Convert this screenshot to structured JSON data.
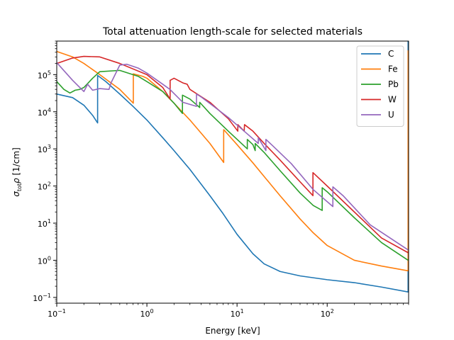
{
  "chart_data": {
    "type": "line",
    "title": "Total attenuation length-scale for selected materials",
    "xlabel": "Energy [keV]",
    "ylabel": "σ_tot ρ [1/cm]",
    "xscale": "log",
    "yscale": "log",
    "xlim": [
      0.1,
      800
    ],
    "ylim": [
      0.07,
      800000
    ],
    "x_ticks": [
      {
        "value": 0.1,
        "base": "10",
        "exp": "−1"
      },
      {
        "value": 1,
        "base": "10",
        "exp": "0"
      },
      {
        "value": 10,
        "base": "10",
        "exp": "1"
      },
      {
        "value": 100,
        "base": "10",
        "exp": "2"
      }
    ],
    "y_ticks": [
      {
        "value": 0.1,
        "base": "10",
        "exp": "−1"
      },
      {
        "value": 1,
        "base": "10",
        "exp": "0"
      },
      {
        "value": 10,
        "base": "10",
        "exp": "1"
      },
      {
        "value": 100,
        "base": "10",
        "exp": "2"
      },
      {
        "value": 1000,
        "base": "10",
        "exp": "3"
      },
      {
        "value": 10000,
        "base": "10",
        "exp": "4"
      },
      {
        "value": 100000,
        "base": "10",
        "exp": "5"
      }
    ],
    "grid": false,
    "legend_position": "top-right",
    "series": [
      {
        "name": "C",
        "color": "#1f77b4",
        "points": [
          [
            0.1,
            30000
          ],
          [
            0.15,
            24000
          ],
          [
            0.2,
            15000
          ],
          [
            0.25,
            8000
          ],
          [
            0.284,
            5000
          ],
          [
            0.284,
            95000
          ],
          [
            0.35,
            65000
          ],
          [
            0.5,
            30000
          ],
          [
            0.7,
            14000
          ],
          [
            1,
            6000
          ],
          [
            1.5,
            2000
          ],
          [
            2,
            900
          ],
          [
            3,
            280
          ],
          [
            5,
            55
          ],
          [
            7,
            18
          ],
          [
            10,
            5
          ],
          [
            15,
            1.5
          ],
          [
            20,
            0.8
          ],
          [
            30,
            0.5
          ],
          [
            50,
            0.38
          ],
          [
            100,
            0.3
          ],
          [
            200,
            0.25
          ],
          [
            400,
            0.19
          ],
          [
            790,
            0.14
          ],
          [
            790,
            900000
          ]
        ]
      },
      {
        "name": "Fe",
        "color": "#ff7f0e",
        "points": [
          [
            0.1,
            420000
          ],
          [
            0.15,
            300000
          ],
          [
            0.2,
            200000
          ],
          [
            0.3,
            100000
          ],
          [
            0.5,
            40000
          ],
          [
            0.707,
            17000
          ],
          [
            0.707,
            105000
          ],
          [
            0.9,
            90000
          ],
          [
            1,
            80000
          ],
          [
            1.5,
            35000
          ],
          [
            2,
            17000
          ],
          [
            3,
            6000
          ],
          [
            5,
            1400
          ],
          [
            7.11,
            430
          ],
          [
            7.11,
            3300
          ],
          [
            10,
            1300
          ],
          [
            15,
            420
          ],
          [
            20,
            180
          ],
          [
            30,
            55
          ],
          [
            50,
            13
          ],
          [
            70,
            5.5
          ],
          [
            100,
            2.5
          ],
          [
            200,
            1
          ],
          [
            400,
            0.7
          ],
          [
            790,
            0.52
          ],
          [
            790,
            450000
          ]
        ]
      },
      {
        "name": "Pb",
        "color": "#2ca02c",
        "points": [
          [
            0.1,
            65000
          ],
          [
            0.12,
            40000
          ],
          [
            0.14,
            32000
          ],
          [
            0.16,
            38000
          ],
          [
            0.18,
            40000
          ],
          [
            0.2,
            45000
          ],
          [
            0.25,
            80000
          ],
          [
            0.3,
            120000
          ],
          [
            0.5,
            130000
          ],
          [
            0.8,
            90000
          ],
          [
            1,
            65000
          ],
          [
            1.5,
            35000
          ],
          [
            2,
            17000
          ],
          [
            2.48,
            9000
          ],
          [
            2.48,
            28000
          ],
          [
            3,
            22000
          ],
          [
            3.85,
            13000
          ],
          [
            3.85,
            18000
          ],
          [
            5,
            9000
          ],
          [
            8,
            3000
          ],
          [
            13,
            1000
          ],
          [
            13,
            1800
          ],
          [
            15,
            1300
          ],
          [
            15.9,
            900
          ],
          [
            15.9,
            1400
          ],
          [
            20,
            800
          ],
          [
            30,
            260
          ],
          [
            50,
            65
          ],
          [
            70,
            30
          ],
          [
            88,
            22
          ],
          [
            88,
            90
          ],
          [
            100,
            70
          ],
          [
            200,
            14
          ],
          [
            400,
            3
          ],
          [
            790,
            1
          ]
        ]
      },
      {
        "name": "W",
        "color": "#d62728",
        "points": [
          [
            0.1,
            200000
          ],
          [
            0.15,
            280000
          ],
          [
            0.2,
            310000
          ],
          [
            0.3,
            300000
          ],
          [
            0.5,
            200000
          ],
          [
            1,
            100000
          ],
          [
            1.5,
            45000
          ],
          [
            1.81,
            22000
          ],
          [
            1.81,
            70000
          ],
          [
            2,
            80000
          ],
          [
            2.5,
            60000
          ],
          [
            2.8,
            55000
          ],
          [
            3,
            40000
          ],
          [
            5,
            18000
          ],
          [
            8,
            6500
          ],
          [
            10.2,
            3000
          ],
          [
            10.2,
            4500
          ],
          [
            12,
            3000
          ],
          [
            12.1,
            4500
          ],
          [
            15,
            3000
          ],
          [
            20,
            1400
          ],
          [
            30,
            500
          ],
          [
            50,
            130
          ],
          [
            69.5,
            55
          ],
          [
            69.5,
            230
          ],
          [
            100,
            100
          ],
          [
            200,
            20
          ],
          [
            400,
            4
          ],
          [
            790,
            1.6
          ]
        ]
      },
      {
        "name": "U",
        "color": "#9467bd",
        "points": [
          [
            0.1,
            210000
          ],
          [
            0.15,
            70000
          ],
          [
            0.2,
            35000
          ],
          [
            0.22,
            55000
          ],
          [
            0.25,
            38000
          ],
          [
            0.3,
            42000
          ],
          [
            0.38,
            40000
          ],
          [
            0.4,
            60000
          ],
          [
            0.5,
            180000
          ],
          [
            0.6,
            190000
          ],
          [
            0.8,
            150000
          ],
          [
            1,
            110000
          ],
          [
            1.5,
            55000
          ],
          [
            1.8,
            40000
          ],
          [
            2.5,
            18000
          ],
          [
            3.55,
            14000
          ],
          [
            3.55,
            30000
          ],
          [
            4,
            25000
          ],
          [
            5.5,
            14000
          ],
          [
            8,
            7000
          ],
          [
            12,
            3000
          ],
          [
            17.2,
            1400
          ],
          [
            17.2,
            2000
          ],
          [
            20.9,
            900
          ],
          [
            20.9,
            1800
          ],
          [
            25,
            1200
          ],
          [
            40,
            400
          ],
          [
            70,
            80
          ],
          [
            115.6,
            28
          ],
          [
            115.6,
            95
          ],
          [
            150,
            55
          ],
          [
            300,
            9
          ],
          [
            790,
            1.9
          ]
        ]
      }
    ]
  }
}
